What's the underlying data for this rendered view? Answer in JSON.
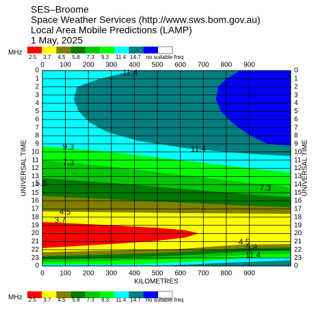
{
  "chart_data": {
    "type": "contour",
    "title_lines": [
      "SES–Broome",
      "Space Weather Services (http://www.sws.bom.gov.au)",
      "Local Area Mobile Predictions (LAMP)",
      "1 May, 2025"
    ],
    "xlabel": "KILOMETRES",
    "ylabel": "UNIVERSAL TIME",
    "xlim": [
      0,
      1080
    ],
    "xticks": [
      0,
      100,
      200,
      300,
      400,
      500,
      600,
      700,
      800,
      900
    ],
    "ylim": [
      0,
      24
    ],
    "yticks": [
      0,
      1,
      2,
      3,
      4,
      5,
      6,
      7,
      8,
      9,
      10,
      11,
      12,
      13,
      14,
      15,
      16,
      17,
      18,
      19,
      20,
      21,
      22,
      23,
      {
        "value": 24,
        "label": "0"
      }
    ],
    "grid": true,
    "legend": {
      "unit": "MHz",
      "levels": [
        2.5,
        3.7,
        4.5,
        5.8,
        7.3,
        9.3,
        11.4,
        14.7
      ],
      "no_freq_label": "no suitable freq",
      "colors": [
        "#ff0000",
        "#ffff00",
        "#808000",
        "#007a00",
        "#00c800",
        "#00ff00",
        "#00ffff",
        "#008080",
        "#0000ff",
        "#ffffff"
      ]
    },
    "regions": [
      {
        "color": "#00ffff",
        "points": [
          [
            0,
            0
          ],
          [
            1080,
            0
          ],
          [
            1080,
            24
          ],
          [
            0,
            24
          ]
        ]
      },
      {
        "color": "#008080",
        "points": [
          [
            400,
            0
          ],
          [
            1080,
            0
          ],
          [
            1080,
            10.5
          ],
          [
            950,
            10.3
          ],
          [
            800,
            10
          ],
          [
            620,
            9.5
          ],
          [
            412,
            8.6
          ],
          [
            278,
            7.5
          ],
          [
            203,
            6.3
          ],
          [
            158,
            5
          ],
          [
            137,
            3.5
          ],
          [
            150,
            2
          ],
          [
            250,
            1
          ]
        ]
      },
      {
        "color": "#0000ff",
        "points": [
          [
            860,
            0
          ],
          [
            1080,
            0
          ],
          [
            1080,
            9.2
          ],
          [
            980,
            9
          ],
          [
            904,
            8
          ],
          [
            830,
            6.5
          ],
          [
            776,
            5
          ],
          [
            755,
            3.5
          ],
          [
            764,
            2
          ],
          [
            800,
            1
          ]
        ]
      },
      {
        "color": "#00ff00",
        "points": [
          [
            0,
            9.3
          ],
          [
            300,
            10
          ],
          [
            600,
            11
          ],
          [
            900,
            12
          ],
          [
            1080,
            12.5
          ],
          [
            1080,
            24
          ],
          [
            0,
            24
          ]
        ]
      },
      {
        "color": "#00c800",
        "points": [
          [
            0,
            11
          ],
          [
            300,
            11.8
          ],
          [
            600,
            12.8
          ],
          [
            900,
            13.8
          ],
          [
            1080,
            14.3
          ],
          [
            1080,
            24
          ],
          [
            0,
            24
          ]
        ]
      },
      {
        "color": "#007a00",
        "points": [
          [
            0,
            13.2
          ],
          [
            300,
            13.8
          ],
          [
            600,
            14.5
          ],
          [
            900,
            15.2
          ],
          [
            1080,
            15.5
          ],
          [
            1080,
            24
          ],
          [
            0,
            24
          ]
        ]
      },
      {
        "color": "#808000",
        "points": [
          [
            0,
            15.4
          ],
          [
            300,
            15.8
          ],
          [
            600,
            16.2
          ],
          [
            900,
            16.6
          ],
          [
            1080,
            16.8
          ],
          [
            1080,
            24
          ],
          [
            0,
            24
          ]
        ]
      },
      {
        "color": "#ffff00",
        "points": [
          [
            0,
            17.3
          ],
          [
            300,
            17.4
          ],
          [
            600,
            17.5
          ],
          [
            1080,
            17.6
          ],
          [
            1080,
            24
          ],
          [
            0,
            24
          ]
        ]
      },
      {
        "color": "#ff0000",
        "points": [
          [
            0,
            18.6
          ],
          [
            300,
            19
          ],
          [
            500,
            19.3
          ],
          [
            620,
            19.6
          ],
          [
            680,
            20
          ],
          [
            620,
            20.5
          ],
          [
            500,
            20.9
          ],
          [
            300,
            21.3
          ],
          [
            0,
            21.8
          ]
        ]
      },
      {
        "color": "#808000",
        "points": [
          [
            0,
            22.3
          ],
          [
            300,
            22.1
          ],
          [
            600,
            21.9
          ],
          [
            850,
            21.4
          ],
          [
            1080,
            21.3
          ],
          [
            1080,
            24
          ],
          [
            0,
            24
          ]
        ]
      },
      {
        "color": "#007a00",
        "points": [
          [
            0,
            22.8
          ],
          [
            300,
            22.6
          ],
          [
            600,
            22.3
          ],
          [
            880,
            21.8
          ],
          [
            1080,
            21.7
          ],
          [
            1080,
            24
          ],
          [
            0,
            24
          ]
        ]
      },
      {
        "color": "#00c800",
        "points": [
          [
            0,
            23.2
          ],
          [
            300,
            23
          ],
          [
            600,
            22.7
          ],
          [
            900,
            22.2
          ],
          [
            1080,
            22.1
          ],
          [
            1080,
            24
          ],
          [
            0,
            24
          ]
        ]
      },
      {
        "color": "#00ff00",
        "points": [
          [
            0,
            23.5
          ],
          [
            300,
            23.4
          ],
          [
            600,
            23.1
          ],
          [
            900,
            22.6
          ],
          [
            1080,
            22.5
          ],
          [
            1080,
            24
          ],
          [
            0,
            24
          ]
        ]
      },
      {
        "color": "#00ffff",
        "points": [
          [
            0,
            23.8
          ],
          [
            400,
            23.8
          ],
          [
            700,
            23.4
          ],
          [
            900,
            23
          ],
          [
            1080,
            22.9
          ],
          [
            1080,
            24
          ],
          [
            0,
            24
          ]
        ]
      },
      {
        "color": "#008080",
        "points": [
          [
            500,
            24
          ],
          [
            800,
            23.6
          ],
          [
            1080,
            23.3
          ],
          [
            1080,
            24
          ]
        ]
      }
    ],
    "contour_labels": [
      "11.4",
      "9.3",
      "11.4",
      "7.3",
      "5.8",
      "7.3",
      "4.5",
      "3.7",
      "4.5",
      "5.8",
      "11.4"
    ]
  }
}
